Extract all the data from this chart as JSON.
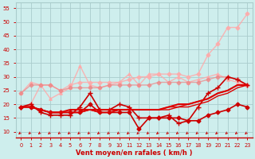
{
  "background_color": "#ceeeed",
  "grid_color": "#aacccc",
  "xlabel": "Vent moyen/en rafales ( km/h )",
  "xlabel_color": "#cc0000",
  "tick_color": "#cc0000",
  "xlim": [
    -0.5,
    23.5
  ],
  "ylim": [
    8,
    57
  ],
  "yticks": [
    10,
    15,
    20,
    25,
    30,
    35,
    40,
    45,
    50,
    55
  ],
  "xticks": [
    0,
    1,
    2,
    3,
    4,
    5,
    6,
    7,
    8,
    9,
    10,
    11,
    12,
    13,
    14,
    15,
    16,
    17,
    18,
    19,
    20,
    21,
    22,
    23
  ],
  "series": [
    {
      "x": [
        0,
        1,
        2,
        3,
        4,
        5,
        6,
        7,
        8,
        9,
        10,
        11,
        12,
        13,
        14,
        15,
        16,
        17,
        18,
        19,
        20,
        21,
        22,
        23
      ],
      "y": [
        19,
        20,
        27,
        27,
        25,
        27,
        28,
        28,
        28,
        28,
        28,
        29,
        30,
        30,
        31,
        31,
        31,
        30,
        31,
        38,
        42,
        48,
        48,
        53
      ],
      "color": "#ffaaaa",
      "lw": 1.0,
      "marker": "D",
      "ms": 2.5,
      "alpha": 0.85
    },
    {
      "x": [
        0,
        1,
        2,
        3,
        4,
        5,
        6,
        7,
        8,
        9,
        10,
        11,
        12,
        13,
        14,
        15,
        16,
        17,
        18,
        19,
        20,
        21,
        22,
        23
      ],
      "y": [
        24,
        28,
        27,
        22,
        24,
        26,
        34,
        27,
        26,
        27,
        28,
        31,
        27,
        31,
        31,
        28,
        30,
        28,
        29,
        30,
        31,
        29,
        28,
        27
      ],
      "color": "#ffaaaa",
      "lw": 1.0,
      "marker": "^",
      "ms": 2.5,
      "alpha": 0.85
    },
    {
      "x": [
        0,
        1,
        2,
        3,
        4,
        5,
        6,
        7,
        8,
        9,
        10,
        11,
        12,
        13,
        14,
        15,
        16,
        17,
        18,
        19,
        20,
        21,
        22,
        23
      ],
      "y": [
        24,
        27,
        27,
        27,
        25,
        26,
        26,
        26,
        26,
        27,
        27,
        27,
        27,
        27,
        28,
        28,
        28,
        28,
        28,
        29,
        30,
        30,
        29,
        27
      ],
      "color": "#ee8888",
      "lw": 1.0,
      "marker": "D",
      "ms": 2.5,
      "alpha": 0.75
    },
    {
      "x": [
        0,
        1,
        2,
        3,
        4,
        5,
        6,
        7,
        8,
        9,
        10,
        11,
        12,
        13,
        14,
        15,
        16,
        17,
        18,
        19,
        20,
        21,
        22,
        23
      ],
      "y": [
        19,
        20,
        17,
        16,
        16,
        16,
        19,
        24,
        18,
        18,
        20,
        19,
        15,
        15,
        15,
        16,
        13,
        14,
        19,
        24,
        26,
        30,
        29,
        27
      ],
      "color": "#cc0000",
      "lw": 1.2,
      "marker": "+",
      "ms": 4,
      "alpha": 1.0
    },
    {
      "x": [
        0,
        1,
        2,
        3,
        4,
        5,
        6,
        7,
        8,
        9,
        10,
        11,
        12,
        13,
        14,
        15,
        16,
        17,
        18,
        19,
        20,
        21,
        22,
        23
      ],
      "y": [
        19,
        19,
        18,
        17,
        17,
        17,
        17,
        20,
        17,
        17,
        17,
        17,
        11,
        15,
        15,
        15,
        15,
        14,
        14,
        16,
        17,
        18,
        20,
        19
      ],
      "color": "#cc0000",
      "lw": 1.2,
      "marker": "D",
      "ms": 2.5,
      "alpha": 1.0
    },
    {
      "x": [
        0,
        1,
        2,
        3,
        4,
        5,
        6,
        7,
        8,
        9,
        10,
        11,
        12,
        13,
        14,
        15,
        16,
        17,
        18,
        19,
        20,
        21,
        22,
        23
      ],
      "y": [
        19,
        19,
        18,
        17,
        17,
        17,
        17,
        18,
        17,
        17,
        18,
        18,
        18,
        18,
        18,
        18,
        19,
        19,
        20,
        21,
        23,
        24,
        26,
        27
      ],
      "color": "#dd0000",
      "lw": 1.0,
      "marker": null,
      "ms": 0,
      "alpha": 1.0
    },
    {
      "x": [
        0,
        1,
        2,
        3,
        4,
        5,
        6,
        7,
        8,
        9,
        10,
        11,
        12,
        13,
        14,
        15,
        16,
        17,
        18,
        19,
        20,
        21,
        22,
        23
      ],
      "y": [
        19,
        19,
        18,
        17,
        17,
        17,
        17,
        18,
        17,
        17,
        18,
        18,
        18,
        18,
        18,
        19,
        19,
        20,
        21,
        22,
        24,
        25,
        27,
        27
      ],
      "color": "#dd0000",
      "lw": 1.0,
      "marker": null,
      "ms": 0,
      "alpha": 1.0
    },
    {
      "x": [
        0,
        1,
        2,
        3,
        4,
        5,
        6,
        7,
        8,
        9,
        10,
        11,
        12,
        13,
        14,
        15,
        16,
        17,
        18,
        19,
        20,
        21,
        22,
        23
      ],
      "y": [
        19,
        19,
        18,
        17,
        17,
        18,
        18,
        18,
        18,
        18,
        18,
        18,
        18,
        18,
        18,
        19,
        20,
        20,
        21,
        22,
        24,
        25,
        27,
        27
      ],
      "color": "#dd0000",
      "lw": 1.5,
      "marker": null,
      "ms": 0,
      "alpha": 1.0
    }
  ]
}
